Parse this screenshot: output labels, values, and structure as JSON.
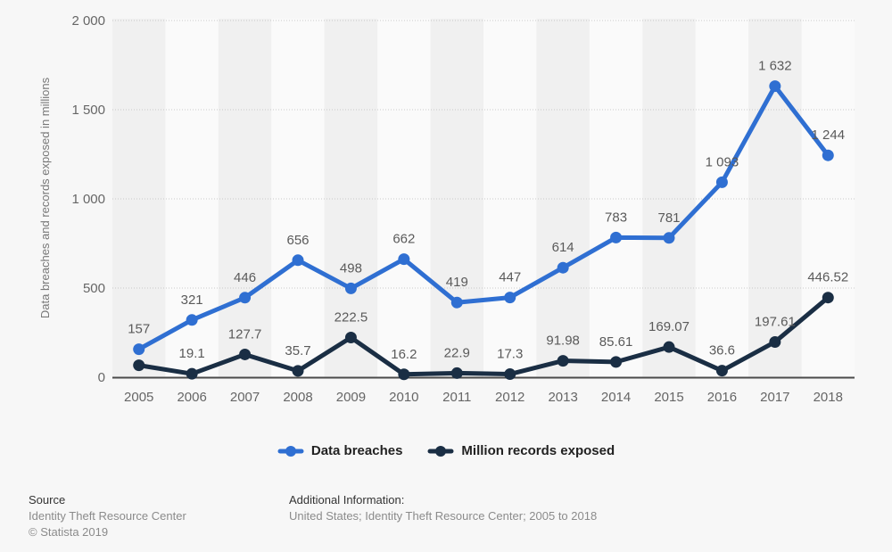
{
  "chart_data": {
    "type": "line",
    "title": "",
    "xlabel": "",
    "ylabel": "Data breaches and records exposed in millions",
    "categories": [
      "2005",
      "2006",
      "2007",
      "2008",
      "2009",
      "2010",
      "2011",
      "2012",
      "2013",
      "2014",
      "2015",
      "2016",
      "2017",
      "2018"
    ],
    "ylim": [
      0,
      2000
    ],
    "yticks": [
      {
        "value": 0,
        "label": "0"
      },
      {
        "value": 500,
        "label": "500"
      },
      {
        "value": 1000,
        "label": "1 000"
      },
      {
        "value": 1500,
        "label": "1 500"
      },
      {
        "value": 2000,
        "label": "2 000"
      }
    ],
    "grid": "horizontal-dotted",
    "legend_position": "bottom",
    "series": [
      {
        "name": "Data breaches",
        "color": "#2f6fd2",
        "values": [
          157,
          321,
          446,
          656,
          498,
          662,
          419,
          447,
          614,
          783,
          781,
          1093,
          1632,
          1244
        ],
        "labels": [
          "157",
          "321",
          "446",
          "656",
          "498",
          "662",
          "419",
          "447",
          "614",
          "783",
          "781",
          "1 093",
          "1 632",
          "1 244"
        ]
      },
      {
        "name": "Million records exposed",
        "color": "#1a2e44",
        "values": [
          66.9,
          19.1,
          127.7,
          35.7,
          222.5,
          16.2,
          22.9,
          17.3,
          91.98,
          85.61,
          169.07,
          36.6,
          197.61,
          446.52
        ],
        "labels": [
          "",
          "19.1",
          "127.7",
          "35.7",
          "222.5",
          "16.2",
          "22.9",
          "17.3",
          "91.98",
          "85.61",
          "169.07",
          "36.6",
          "197.61",
          "446.52"
        ]
      }
    ]
  },
  "legend": {
    "items": [
      {
        "label": "Data breaches"
      },
      {
        "label": "Million records exposed"
      }
    ]
  },
  "footer": {
    "source_title": "Source",
    "source_line1": "Identity Theft Resource Center",
    "source_line2": "© Statista 2019",
    "additional_title": "Additional Information:",
    "additional_text": "United States; Identity Theft Resource Center; 2005 to 2018"
  },
  "colors": {
    "background": "#f7f7f7",
    "band_dark": "#f0f0f0",
    "band_light": "#fafafa",
    "grid": "#c9c9c9",
    "axis_line": "#4a4a4a",
    "tick_text": "#666666",
    "value_label": "#5a5a5a",
    "axis_title": "#787878"
  }
}
